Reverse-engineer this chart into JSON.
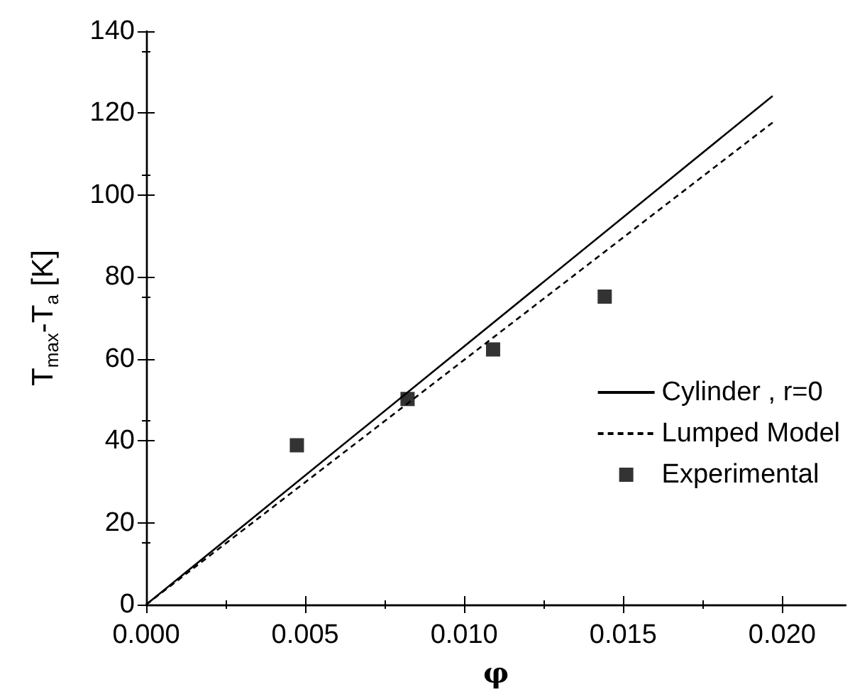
{
  "chart_data": {
    "type": "line",
    "xlabel": "φ",
    "ylabel": "T$_{max}$-T$_{a}$ [K]",
    "xlim": [
      0,
      0.022
    ],
    "xticks": [
      {
        "value": 0,
        "label": "0.000"
      },
      {
        "value": 0.005,
        "label": "0.005"
      },
      {
        "value": 0.01,
        "label": "0.010"
      },
      {
        "value": 0.015,
        "label": "0.015"
      },
      {
        "value": 0.02,
        "label": "0.020"
      }
    ],
    "ylim": [
      0,
      140
    ],
    "yticks": [
      0,
      20,
      40,
      60,
      80,
      100,
      120,
      140
    ],
    "grid": false,
    "legend": "right",
    "series": [
      {
        "name": "Cylinder , r=0",
        "type": "line",
        "color": "#000000",
        "line_style": "solid",
        "marker": "none",
        "x": [
          0,
          0.0197
        ],
        "values": [
          0,
          124.2
        ]
      },
      {
        "name": "Lumped Model",
        "type": "line",
        "color": "#000000",
        "line_style": "dashed",
        "marker": "none",
        "x": [
          0,
          0.0197
        ],
        "values": [
          0,
          117.7
        ]
      },
      {
        "name": "Experimental",
        "type": "scatter",
        "color": "#000000",
        "marker": "square",
        "x": [
          0.00474,
          0.00822,
          0.01091,
          0.01442
        ],
        "values": [
          38.9,
          50.2,
          62.3,
          75.2
        ]
      }
    ]
  }
}
